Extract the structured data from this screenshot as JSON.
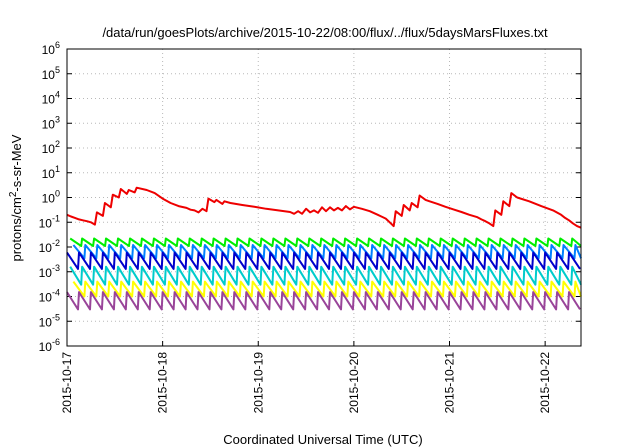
{
  "chart_data": {
    "type": "line",
    "title": "/data/run/goesPlots/archive/2015-10-22/08:00/flux/../flux/5daysMarsFluxes.txt",
    "xlabel": "Coordinated Universal Time (UTC)",
    "ylabel_main": "protons/cm",
    "ylabel_sup": "2",
    "ylabel_rest": "-s-sr-MeV",
    "yscale": "log",
    "ylim_exp": [
      -6,
      6
    ],
    "ytick_exponents": [
      -6,
      -5,
      -4,
      -3,
      -2,
      -1,
      0,
      1,
      2,
      3,
      4,
      5,
      6
    ],
    "ytick_base": "10",
    "xlim": [
      "2015-10-17T00:00",
      "2015-10-22T09:00"
    ],
    "xtick_labels": [
      "2015-10-17",
      "2015-10-18",
      "2015-10-19",
      "2015-10-20",
      "2015-10-21",
      "2015-10-22"
    ],
    "grid": true,
    "series": [
      {
        "color": "#ee0000",
        "x": [
          "2015-10-17T00:00",
          "2015-10-17T01:00",
          "2015-10-17T02:00",
          "2015-10-17T03:00",
          "2015-10-17T04:00",
          "2015-10-17T05:00",
          "2015-10-17T06:00",
          "2015-10-17T07:00",
          "2015-10-17T07:30",
          "2015-10-17T09:00",
          "2015-10-17T09:30",
          "2015-10-17T11:00",
          "2015-10-17T11:30",
          "2015-10-17T13:00",
          "2015-10-17T13:30",
          "2015-10-17T15:00",
          "2015-10-17T15:30",
          "2015-10-17T17:00",
          "2015-10-17T17:30",
          "2015-10-17T20:00",
          "2015-10-17T22:00",
          "2015-10-18T00:00",
          "2015-10-18T02:00",
          "2015-10-18T04:00",
          "2015-10-18T06:00",
          "2015-10-18T07:00",
          "2015-10-18T08:00",
          "2015-10-18T09:00",
          "2015-10-18T10:00",
          "2015-10-18T11:00",
          "2015-10-18T11:30",
          "2015-10-18T13:00",
          "2015-10-18T13:30",
          "2015-10-18T15:00",
          "2015-10-18T15:30",
          "2015-10-18T17:00",
          "2015-10-18T20:00",
          "2015-10-18T23:00",
          "2015-10-19T02:00",
          "2015-10-19T05:00",
          "2015-10-19T08:00",
          "2015-10-19T09:00",
          "2015-10-19T10:00",
          "2015-10-19T11:00",
          "2015-10-19T12:00",
          "2015-10-19T13:00",
          "2015-10-19T14:00",
          "2015-10-19T15:00",
          "2015-10-19T16:00",
          "2015-10-19T17:00",
          "2015-10-19T18:00",
          "2015-10-19T19:00",
          "2015-10-19T20:00",
          "2015-10-19T21:00",
          "2015-10-19T22:00",
          "2015-10-19T23:00",
          "2015-10-20T00:00",
          "2015-10-20T02:00",
          "2015-10-20T04:00",
          "2015-10-20T06:00",
          "2015-10-20T08:00",
          "2015-10-20T09:00",
          "2015-10-20T10:00",
          "2015-10-20T10:30",
          "2015-10-20T12:00",
          "2015-10-20T12:30",
          "2015-10-20T14:00",
          "2015-10-20T14:30",
          "2015-10-20T16:00",
          "2015-10-20T16:30",
          "2015-10-20T18:00",
          "2015-10-20T19:00",
          "2015-10-20T21:00",
          "2015-10-20T23:00",
          "2015-10-21T01:00",
          "2015-10-21T03:00",
          "2015-10-21T05:00",
          "2015-10-21T07:00",
          "2015-10-21T08:00",
          "2015-10-21T09:00",
          "2015-10-21T10:00",
          "2015-10-21T11:00",
          "2015-10-21T11:30",
          "2015-10-21T13:00",
          "2015-10-21T13:30",
          "2015-10-21T15:00",
          "2015-10-21T15:30",
          "2015-10-21T17:00",
          "2015-10-21T20:00",
          "2015-10-21T23:00",
          "2015-10-22T02:00",
          "2015-10-22T04:00",
          "2015-10-22T05:00",
          "2015-10-22T06:00",
          "2015-10-22T07:00",
          "2015-10-22T08:00",
          "2015-10-22T09:00"
        ],
        "values": [
          0.2,
          0.17,
          0.15,
          0.13,
          0.12,
          0.11,
          0.1,
          0.08,
          0.25,
          0.18,
          0.6,
          0.4,
          1.3,
          1.0,
          2.2,
          1.4,
          2.0,
          1.6,
          2.5,
          2.0,
          1.5,
          0.9,
          0.6,
          0.45,
          0.38,
          0.32,
          0.3,
          0.25,
          0.35,
          0.28,
          0.9,
          0.65,
          0.8,
          0.55,
          0.7,
          0.6,
          0.5,
          0.42,
          0.35,
          0.3,
          0.26,
          0.22,
          0.28,
          0.22,
          0.35,
          0.25,
          0.3,
          0.24,
          0.4,
          0.28,
          0.4,
          0.3,
          0.38,
          0.3,
          0.45,
          0.33,
          0.42,
          0.35,
          0.28,
          0.2,
          0.14,
          0.1,
          0.07,
          0.28,
          0.18,
          0.5,
          0.3,
          0.6,
          0.4,
          1.2,
          0.8,
          0.7,
          0.55,
          0.42,
          0.33,
          0.26,
          0.2,
          0.16,
          0.13,
          0.11,
          0.09,
          0.07,
          0.3,
          0.2,
          0.7,
          0.45,
          1.5,
          1.0,
          0.7,
          0.45,
          0.3,
          0.2,
          0.15,
          0.12,
          0.09,
          0.07,
          0.06
        ]
      },
      {
        "color": "#00ee00",
        "peak": 0.022,
        "trough": 0.011
      },
      {
        "color": "#0080ff",
        "peak": 0.012,
        "trough": 0.0035
      },
      {
        "color": "#0000cc",
        "peak": 0.006,
        "trough": 0.0013
      },
      {
        "color": "#00cccc",
        "peak": 0.0016,
        "trough": 0.0003
      },
      {
        "color": "#ffff00",
        "peak": 0.0004,
        "trough": 0.0001
      },
      {
        "color": "#994499",
        "peak": 0.00015,
        "trough": 3e-05
      }
    ]
  }
}
